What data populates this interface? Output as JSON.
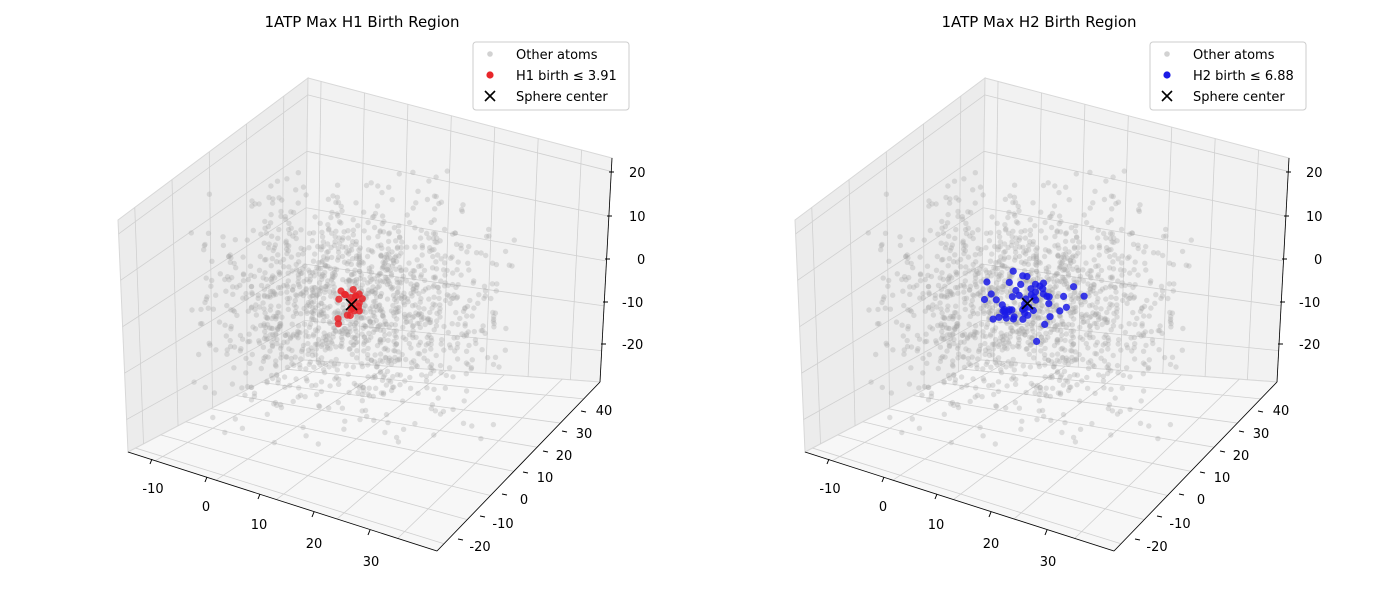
{
  "chart_data": [
    {
      "type": "scatter",
      "projection": "3d",
      "title": "1ATP Max H1 Birth Region",
      "x_ticks": [
        "-10",
        "0",
        "10",
        "20",
        "30"
      ],
      "y_ticks": [
        "-20",
        "-10",
        "0",
        "10",
        "20",
        "30",
        "40"
      ],
      "z_ticks": [
        "20",
        "10",
        "0",
        "-10",
        "-20"
      ],
      "xlim": [
        -15,
        37
      ],
      "ylim": [
        -24,
        42
      ],
      "zlim": [
        -28,
        22
      ],
      "grid": true,
      "legend_position": "top-right",
      "legend": [
        "Other atoms",
        "H1 birth ≤ 3.91",
        "Sphere center"
      ],
      "series": [
        {
          "name": "Other atoms",
          "marker": "circle",
          "color": "#a6a6a6",
          "approx_count": 2500
        },
        {
          "name": "H1 birth ≤ 3.91",
          "marker": "circle",
          "color": "#e8262a",
          "approx_count": 22
        },
        {
          "name": "Sphere center",
          "marker": "x",
          "color": "#000000",
          "approx_count": 1
        }
      ]
    },
    {
      "type": "scatter",
      "projection": "3d",
      "title": "1ATP Max H2 Birth Region",
      "x_ticks": [
        "-10",
        "0",
        "10",
        "20",
        "30"
      ],
      "y_ticks": [
        "-20",
        "-10",
        "0",
        "10",
        "20",
        "30",
        "40"
      ],
      "z_ticks": [
        "20",
        "10",
        "0",
        "-10",
        "-20"
      ],
      "xlim": [
        -15,
        37
      ],
      "ylim": [
        -24,
        42
      ],
      "zlim": [
        -28,
        22
      ],
      "grid": true,
      "legend_position": "top-right",
      "legend": [
        "Other atoms",
        "H2 birth ≤ 6.88",
        "Sphere center"
      ],
      "series": [
        {
          "name": "Other atoms",
          "marker": "circle",
          "color": "#a6a6a6",
          "approx_count": 2500
        },
        {
          "name": "H2 birth ≤ 6.88",
          "marker": "circle",
          "color": "#1a1ae6",
          "approx_count": 55
        },
        {
          "name": "Sphere center",
          "marker": "x",
          "color": "#000000",
          "approx_count": 1
        }
      ]
    }
  ]
}
